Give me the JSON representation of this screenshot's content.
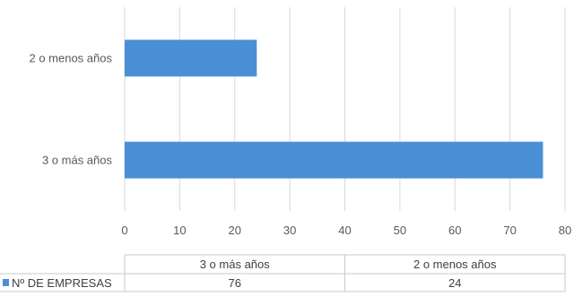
{
  "chart_data": {
    "type": "bar",
    "orientation": "horizontal",
    "categories": [
      "2 o menos años",
      "3 o más años"
    ],
    "series": [
      {
        "name": "Nº DE EMPRESAS",
        "values": [
          24,
          76
        ],
        "color": "#4a8fd6"
      }
    ],
    "xlim": [
      0,
      80
    ],
    "x_ticks": [
      0,
      10,
      20,
      30,
      40,
      50,
      60,
      70,
      80
    ],
    "grid": true,
    "grid_color": "#d9d9d9",
    "data_table": {
      "columns": [
        "3 o más años",
        "2 o menos años"
      ],
      "rows": [
        {
          "label": "Nº DE EMPRESAS",
          "values": [
            76,
            24
          ]
        }
      ]
    }
  }
}
